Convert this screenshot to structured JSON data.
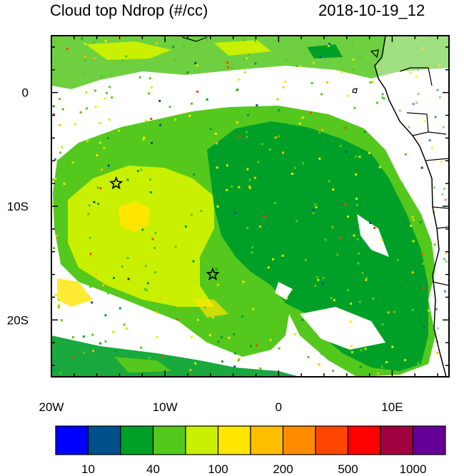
{
  "title": "Cloud top Ndrop (#/cc)",
  "datetime": "2018-10-19_12",
  "axes": {
    "x": {
      "min": -20,
      "max": 15,
      "ticks": [
        {
          "value": -20,
          "label": "20W"
        },
        {
          "value": -10,
          "label": "10W"
        },
        {
          "value": 0,
          "label": "0"
        },
        {
          "value": 10,
          "label": "10E"
        }
      ]
    },
    "y": {
      "min": -25,
      "max": 5,
      "ticks": [
        {
          "value": 0,
          "label": "0"
        },
        {
          "value": -10,
          "label": "10S"
        },
        {
          "value": -20,
          "label": "20S"
        }
      ]
    }
  },
  "markers": [
    {
      "name": "star",
      "lon": -14.3,
      "lat": -8.0
    },
    {
      "name": "star",
      "lon": -5.8,
      "lat": -16.0
    }
  ],
  "colorbar": {
    "colors": [
      "#0000ff",
      "#00508c",
      "#00a028",
      "#55c81e",
      "#c8f000",
      "#ffe600",
      "#ffbe00",
      "#ff8c00",
      "#ff4600",
      "#ff0000",
      "#a00040",
      "#640096"
    ],
    "labels": [
      {
        "after_index": 0,
        "text": "10"
      },
      {
        "after_index": 2,
        "text": "40"
      },
      {
        "after_index": 4,
        "text": "100"
      },
      {
        "after_index": 6,
        "text": "200"
      },
      {
        "after_index": 8,
        "text": "500"
      },
      {
        "after_index": 10,
        "text": "1000"
      }
    ]
  }
}
